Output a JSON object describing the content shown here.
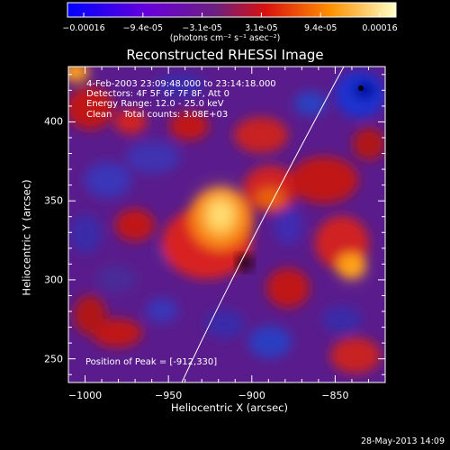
{
  "colorbar": {
    "ticks": [
      "-0.00016",
      "-9.4e-05",
      "-3.1e-05",
      "3.1e-05",
      "9.4e-05",
      "0.00016"
    ],
    "units": "(photons cm⁻² s⁻¹ asec⁻²)"
  },
  "chart_data": {
    "type": "heatmap",
    "title": "Reconstructed RHESSI Image",
    "xlabel": "Heliocentric X (arcsec)",
    "ylabel": "Heliocentric Y (arcsec)",
    "xlim": [
      -1010,
      -820
    ],
    "ylim": [
      235,
      435
    ],
    "x_ticks": [
      -1000,
      -950,
      -900,
      -850
    ],
    "y_ticks": [
      250,
      300,
      350,
      400
    ],
    "color_range": [
      -0.00016,
      0.00016
    ],
    "colormap": "blue-purple-red-yellow-white",
    "peak": {
      "x": -912,
      "y": 330
    },
    "annotations": [
      "4-Feb-2003 23:09:48.000 to 23:14:18.000",
      "Detectors: 4F 5F 6F 7F 8F, Att 0",
      "Energy Range: 12.0 - 25.0 keV",
      "Clean    Total counts: 3.08E+03"
    ],
    "peak_text": "Position of Peak = [-912,330]"
  },
  "footer": {
    "timestamp": "28-May-2013 14:09"
  }
}
